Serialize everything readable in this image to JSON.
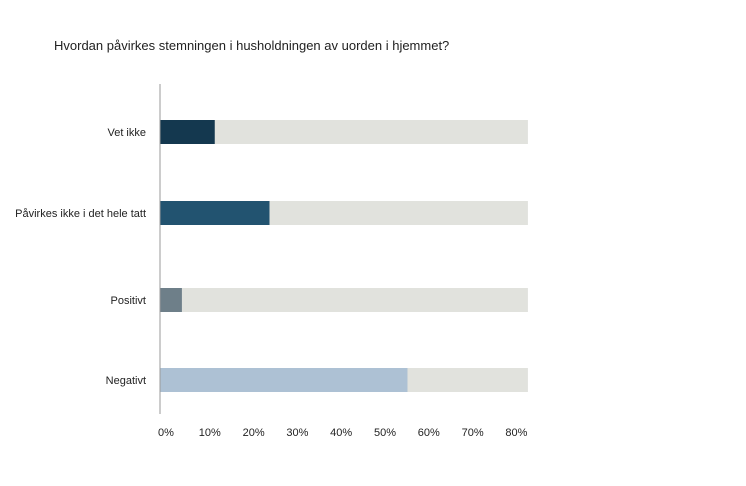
{
  "chart_data": {
    "type": "bar",
    "orientation": "horizontal",
    "title": "Hvordan påvirkes stemningen i husholdningen av uorden i hjemmet?",
    "xlabel": "",
    "ylabel": "",
    "categories": [
      "Vet ikke",
      "Påvirkes ikke i det hele tatt",
      "Positivt",
      "Negativt"
    ],
    "values": [
      12.5,
      25,
      5,
      56.5
    ],
    "xlim": [
      0,
      85
    ],
    "ticks": [
      0,
      10,
      20,
      30,
      40,
      50,
      60,
      70,
      80
    ],
    "tick_labels": [
      "0%",
      "10%",
      "20%",
      "30%",
      "40%",
      "50%",
      "60%",
      "70%",
      "80%"
    ],
    "background_bar_value": 84,
    "bar_colors": [
      "#14384f",
      "#225370",
      "#6e7f89",
      "#adc1d4"
    ],
    "background_bar_color": "#e1e2dd",
    "axis_color": "#9a9a9a",
    "grid": false,
    "legend": "none"
  }
}
